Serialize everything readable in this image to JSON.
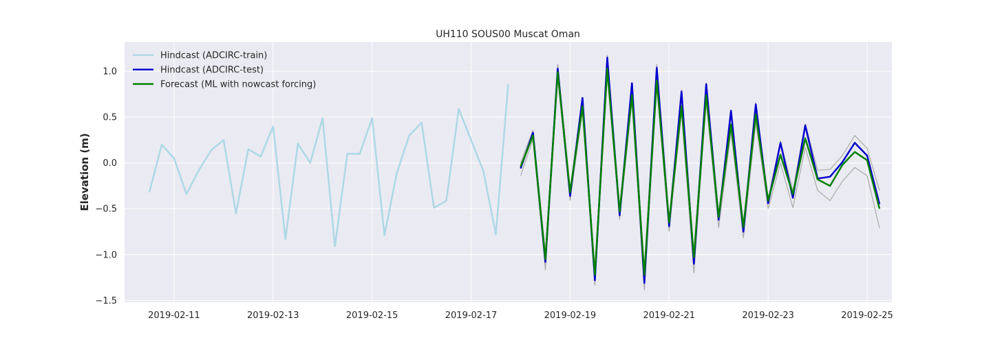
{
  "chart_data": {
    "type": "line",
    "title": "UH110 SOUS00 Muscat Oman",
    "xlabel": "",
    "ylabel": "Elevation (m)",
    "x_axis": "date",
    "xlim": [
      "2019-02-10T00:00",
      "2019-02-25T12:00"
    ],
    "ylim": [
      -1.52,
      1.32
    ],
    "xticks": [
      "2019-02-11",
      "2019-02-13",
      "2019-02-15",
      "2019-02-17",
      "2019-02-19",
      "2019-02-21",
      "2019-02-23",
      "2019-02-25"
    ],
    "yticks": [
      "1.0",
      "0.5",
      "0.0",
      "−0.5",
      "−1.0",
      "−1.5"
    ],
    "grid": true,
    "legend_position": "top-left",
    "background_color": "#eaeaf2",
    "series": [
      {
        "name": "Hindcast (ADCIRC-train)",
        "color": "#add8e6",
        "x": [
          "2019-02-10T12:00",
          "2019-02-10T18:00",
          "2019-02-11T00:00",
          "2019-02-11T06:00",
          "2019-02-11T12:00",
          "2019-02-11T18:00",
          "2019-02-12T00:00",
          "2019-02-12T06:00",
          "2019-02-12T12:00",
          "2019-02-12T18:00",
          "2019-02-13T00:00",
          "2019-02-13T06:00",
          "2019-02-13T12:00",
          "2019-02-13T18:00",
          "2019-02-14T00:00",
          "2019-02-14T06:00",
          "2019-02-14T12:00",
          "2019-02-14T18:00",
          "2019-02-15T00:00",
          "2019-02-15T06:00",
          "2019-02-15T12:00",
          "2019-02-15T18:00",
          "2019-02-16T00:00",
          "2019-02-16T06:00",
          "2019-02-16T12:00",
          "2019-02-16T18:00",
          "2019-02-17T00:00",
          "2019-02-17T06:00",
          "2019-02-17T12:00",
          "2019-02-17T18:00"
        ],
        "y": [
          -0.32,
          0.2,
          0.05,
          -0.34,
          -0.08,
          0.14,
          0.25,
          -0.55,
          0.15,
          0.07,
          0.4,
          -0.83,
          0.21,
          0.0,
          0.49,
          -0.91,
          0.1,
          0.1,
          0.49,
          -0.79,
          -0.11,
          0.3,
          0.44,
          -0.49,
          -0.41,
          0.59,
          0.25,
          -0.09,
          -0.78,
          0.86
        ]
      },
      {
        "name": "Hindcast (ADCIRC-test)",
        "color": "#0000cd",
        "x": [
          "2019-02-18T00:00",
          "2019-02-18T06:00",
          "2019-02-18T12:00",
          "2019-02-18T18:00",
          "2019-02-19T00:00",
          "2019-02-19T06:00",
          "2019-02-19T12:00",
          "2019-02-19T18:00",
          "2019-02-20T00:00",
          "2019-02-20T06:00",
          "2019-02-20T12:00",
          "2019-02-20T18:00",
          "2019-02-21T00:00",
          "2019-02-21T06:00",
          "2019-02-21T12:00",
          "2019-02-21T18:00",
          "2019-02-22T00:00",
          "2019-02-22T06:00",
          "2019-02-22T12:00",
          "2019-02-22T18:00",
          "2019-02-23T00:00",
          "2019-02-23T06:00",
          "2019-02-23T12:00",
          "2019-02-23T18:00",
          "2019-02-24T00:00",
          "2019-02-24T06:00",
          "2019-02-24T12:00",
          "2019-02-24T18:00",
          "2019-02-25T00:00",
          "2019-02-25T06:00"
        ],
        "y": [
          -0.06,
          0.33,
          -1.08,
          1.03,
          -0.36,
          0.71,
          -1.28,
          1.15,
          -0.57,
          0.87,
          -1.31,
          1.04,
          -0.69,
          0.78,
          -1.1,
          0.86,
          -0.62,
          0.57,
          -0.75,
          0.64,
          -0.44,
          0.22,
          -0.38,
          0.41,
          -0.17,
          -0.15,
          0.01,
          0.22,
          0.08,
          -0.45
        ]
      },
      {
        "name": "Forecast (ML with nowcast forcing)",
        "color": "#008000",
        "x": [
          "2019-02-18T00:00",
          "2019-02-18T06:00",
          "2019-02-18T12:00",
          "2019-02-18T18:00",
          "2019-02-19T00:00",
          "2019-02-19T06:00",
          "2019-02-19T12:00",
          "2019-02-19T18:00",
          "2019-02-20T00:00",
          "2019-02-20T06:00",
          "2019-02-20T12:00",
          "2019-02-20T18:00",
          "2019-02-21T00:00",
          "2019-02-21T06:00",
          "2019-02-21T12:00",
          "2019-02-21T18:00",
          "2019-02-22T00:00",
          "2019-02-22T06:00",
          "2019-02-22T12:00",
          "2019-02-22T18:00",
          "2019-02-23T00:00",
          "2019-02-23T06:00",
          "2019-02-23T12:00",
          "2019-02-23T18:00",
          "2019-02-24T00:00",
          "2019-02-24T06:00",
          "2019-02-24T12:00",
          "2019-02-24T18:00",
          "2019-02-25T00:00",
          "2019-02-25T06:00"
        ],
        "y": [
          -0.04,
          0.3,
          -1.05,
          0.99,
          -0.32,
          0.62,
          -1.22,
          1.03,
          -0.53,
          0.74,
          -1.22,
          0.9,
          -0.65,
          0.62,
          -1.03,
          0.74,
          -0.59,
          0.42,
          -0.7,
          0.53,
          -0.41,
          0.09,
          -0.34,
          0.27,
          -0.18,
          -0.25,
          -0.02,
          0.12,
          0.03,
          -0.5
        ]
      }
    ],
    "envelope": {
      "color": "#aaaaaa",
      "x": [
        "2019-02-18T00:00",
        "2019-02-18T06:00",
        "2019-02-18T12:00",
        "2019-02-18T18:00",
        "2019-02-19T00:00",
        "2019-02-19T06:00",
        "2019-02-19T12:00",
        "2019-02-19T18:00",
        "2019-02-20T00:00",
        "2019-02-20T06:00",
        "2019-02-20T12:00",
        "2019-02-20T18:00",
        "2019-02-21T00:00",
        "2019-02-21T06:00",
        "2019-02-21T12:00",
        "2019-02-21T18:00",
        "2019-02-22T00:00",
        "2019-02-22T06:00",
        "2019-02-22T12:00",
        "2019-02-22T18:00",
        "2019-02-23T00:00",
        "2019-02-23T06:00",
        "2019-02-23T12:00",
        "2019-02-23T18:00",
        "2019-02-24T00:00",
        "2019-02-24T06:00",
        "2019-02-24T12:00",
        "2019-02-24T18:00",
        "2019-02-25T00:00",
        "2019-02-25T06:00"
      ],
      "upper": [
        0.0,
        0.36,
        -0.98,
        1.08,
        -0.28,
        0.72,
        -1.18,
        1.18,
        -0.48,
        0.88,
        -1.16,
        1.08,
        -0.6,
        0.8,
        -0.98,
        0.88,
        -0.55,
        0.58,
        -0.66,
        0.66,
        -0.38,
        0.24,
        -0.3,
        0.43,
        -0.08,
        -0.07,
        0.08,
        0.3,
        0.16,
        -0.3
      ],
      "lower": [
        -0.14,
        0.26,
        -1.17,
        0.92,
        -0.41,
        0.56,
        -1.34,
        0.96,
        -0.62,
        0.68,
        -1.39,
        0.84,
        -0.75,
        0.56,
        -1.2,
        0.68,
        -0.71,
        0.34,
        -0.82,
        0.44,
        -0.5,
        0.0,
        -0.49,
        0.17,
        -0.3,
        -0.41,
        -0.2,
        -0.05,
        -0.14,
        -0.71
      ]
    }
  }
}
